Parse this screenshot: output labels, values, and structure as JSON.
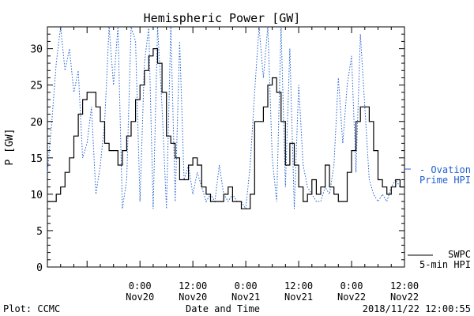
{
  "chart_data": {
    "type": "line",
    "title": "Hemispheric Power [GW]",
    "xlabel": "Date and Time",
    "ylabel": "P [GW]",
    "ylim": [
      0,
      33
    ],
    "y_ticks": [
      0,
      5,
      10,
      15,
      20,
      25,
      30
    ],
    "xlim": [
      "2018-11-19 03:00",
      "2018-11-22 12:00"
    ],
    "x_ticks": [
      {
        "t": "2018-11-20 00:00",
        "line1": "0:00",
        "line2": "Nov20"
      },
      {
        "t": "2018-11-20 12:00",
        "line1": "12:00",
        "line2": "Nov20"
      },
      {
        "t": "2018-11-21 00:00",
        "line1": "0:00",
        "line2": "Nov21"
      },
      {
        "t": "2018-11-21 12:00",
        "line1": "12:00",
        "line2": "Nov21"
      },
      {
        "t": "2018-11-22 00:00",
        "line1": "0:00",
        "line2": "Nov22"
      },
      {
        "t": "2018-11-22 12:00",
        "line1": "12:00",
        "line2": "Nov22"
      }
    ],
    "series": [
      {
        "name": "SWPC 5-min HPI",
        "legend_line1": "SWPC",
        "legend_line2": "5-min HPI",
        "color": "#000000",
        "style": "solid",
        "points": [
          [
            "2018-11-19 03:00",
            9
          ],
          [
            "2018-11-19 04:00",
            9
          ],
          [
            "2018-11-19 05:00",
            10
          ],
          [
            "2018-11-19 06:00",
            11
          ],
          [
            "2018-11-19 07:00",
            13
          ],
          [
            "2018-11-19 08:00",
            15
          ],
          [
            "2018-11-19 09:00",
            18
          ],
          [
            "2018-11-19 10:00",
            21
          ],
          [
            "2018-11-19 11:00",
            23
          ],
          [
            "2018-11-19 12:00",
            24
          ],
          [
            "2018-11-19 13:00",
            24
          ],
          [
            "2018-11-19 14:00",
            22
          ],
          [
            "2018-11-19 15:00",
            20
          ],
          [
            "2018-11-19 16:00",
            17
          ],
          [
            "2018-11-19 17:00",
            16
          ],
          [
            "2018-11-19 18:00",
            16
          ],
          [
            "2018-11-19 19:00",
            14
          ],
          [
            "2018-11-19 20:00",
            16
          ],
          [
            "2018-11-19 21:00",
            18
          ],
          [
            "2018-11-19 22:00",
            20
          ],
          [
            "2018-11-19 23:00",
            23
          ],
          [
            "2018-11-20 00:00",
            25
          ],
          [
            "2018-11-20 01:00",
            27
          ],
          [
            "2018-11-20 02:00",
            29
          ],
          [
            "2018-11-20 03:00",
            30
          ],
          [
            "2018-11-20 04:00",
            28
          ],
          [
            "2018-11-20 05:00",
            24
          ],
          [
            "2018-11-20 06:00",
            18
          ],
          [
            "2018-11-20 07:00",
            17
          ],
          [
            "2018-11-20 08:00",
            15
          ],
          [
            "2018-11-20 09:00",
            12
          ],
          [
            "2018-11-20 10:00",
            12
          ],
          [
            "2018-11-20 11:00",
            14
          ],
          [
            "2018-11-20 12:00",
            15
          ],
          [
            "2018-11-20 13:00",
            14
          ],
          [
            "2018-11-20 14:00",
            11
          ],
          [
            "2018-11-20 15:00",
            10
          ],
          [
            "2018-11-20 16:00",
            9
          ],
          [
            "2018-11-20 17:00",
            9
          ],
          [
            "2018-11-20 18:00",
            9
          ],
          [
            "2018-11-20 19:00",
            10
          ],
          [
            "2018-11-20 20:00",
            11
          ],
          [
            "2018-11-20 21:00",
            9
          ],
          [
            "2018-11-20 22:00",
            9
          ],
          [
            "2018-11-20 23:00",
            8
          ],
          [
            "2018-11-21 00:00",
            8
          ],
          [
            "2018-11-21 01:00",
            10
          ],
          [
            "2018-11-21 02:00",
            20
          ],
          [
            "2018-11-21 03:00",
            20
          ],
          [
            "2018-11-21 04:00",
            22
          ],
          [
            "2018-11-21 05:00",
            25
          ],
          [
            "2018-11-21 06:00",
            26
          ],
          [
            "2018-11-21 07:00",
            24
          ],
          [
            "2018-11-21 08:00",
            20
          ],
          [
            "2018-11-21 09:00",
            14
          ],
          [
            "2018-11-21 10:00",
            17
          ],
          [
            "2018-11-21 11:00",
            14
          ],
          [
            "2018-11-21 12:00",
            11
          ],
          [
            "2018-11-21 13:00",
            9
          ],
          [
            "2018-11-21 14:00",
            10
          ],
          [
            "2018-11-21 15:00",
            12
          ],
          [
            "2018-11-21 16:00",
            10
          ],
          [
            "2018-11-21 17:00",
            11
          ],
          [
            "2018-11-21 18:00",
            14
          ],
          [
            "2018-11-21 19:00",
            11
          ],
          [
            "2018-11-21 20:00",
            10
          ],
          [
            "2018-11-21 21:00",
            9
          ],
          [
            "2018-11-21 22:00",
            9
          ],
          [
            "2018-11-21 23:00",
            13
          ],
          [
            "2018-11-22 00:00",
            16
          ],
          [
            "2018-11-22 01:00",
            20
          ],
          [
            "2018-11-22 02:00",
            22
          ],
          [
            "2018-11-22 03:00",
            22
          ],
          [
            "2018-11-22 04:00",
            20
          ],
          [
            "2018-11-22 05:00",
            16
          ],
          [
            "2018-11-22 06:00",
            12
          ],
          [
            "2018-11-22 07:00",
            11
          ],
          [
            "2018-11-22 08:00",
            10
          ],
          [
            "2018-11-22 09:00",
            11
          ],
          [
            "2018-11-22 10:00",
            12
          ],
          [
            "2018-11-22 11:00",
            11
          ],
          [
            "2018-11-22 12:00",
            11
          ]
        ]
      },
      {
        "name": "Ovation Prime HPI",
        "legend_line1": "- Ovation",
        "legend_line2": "Prime HPI",
        "color": "#1f5fd0",
        "style": "dotted",
        "points": [
          [
            "2018-11-19 03:00",
            13
          ],
          [
            "2018-11-19 04:00",
            20
          ],
          [
            "2018-11-19 05:00",
            28
          ],
          [
            "2018-11-19 06:00",
            33
          ],
          [
            "2018-11-19 07:00",
            27
          ],
          [
            "2018-11-19 08:00",
            30
          ],
          [
            "2018-11-19 09:00",
            24
          ],
          [
            "2018-11-19 10:00",
            27
          ],
          [
            "2018-11-19 11:00",
            15
          ],
          [
            "2018-11-19 12:00",
            17
          ],
          [
            "2018-11-19 13:00",
            22
          ],
          [
            "2018-11-19 14:00",
            10
          ],
          [
            "2018-11-19 15:00",
            14
          ],
          [
            "2018-11-19 16:00",
            20
          ],
          [
            "2018-11-19 17:00",
            33
          ],
          [
            "2018-11-19 18:00",
            25
          ],
          [
            "2018-11-19 19:00",
            33
          ],
          [
            "2018-11-19 20:00",
            8
          ],
          [
            "2018-11-19 21:00",
            12
          ],
          [
            "2018-11-19 22:00",
            33
          ],
          [
            "2018-11-19 23:00",
            31
          ],
          [
            "2018-11-20 00:00",
            9
          ],
          [
            "2018-11-20 01:00",
            28
          ],
          [
            "2018-11-20 02:00",
            33
          ],
          [
            "2018-11-20 03:00",
            8
          ],
          [
            "2018-11-20 04:00",
            33
          ],
          [
            "2018-11-20 05:00",
            22
          ],
          [
            "2018-11-20 06:00",
            8
          ],
          [
            "2018-11-20 07:00",
            33
          ],
          [
            "2018-11-20 08:00",
            9
          ],
          [
            "2018-11-20 09:00",
            31
          ],
          [
            "2018-11-20 10:00",
            12
          ],
          [
            "2018-11-20 11:00",
            14
          ],
          [
            "2018-11-20 12:00",
            10
          ],
          [
            "2018-11-20 13:00",
            13
          ],
          [
            "2018-11-20 14:00",
            11
          ],
          [
            "2018-11-20 15:00",
            9
          ],
          [
            "2018-11-20 16:00",
            10
          ],
          [
            "2018-11-20 17:00",
            9
          ],
          [
            "2018-11-20 18:00",
            14
          ],
          [
            "2018-11-20 19:00",
            10
          ],
          [
            "2018-11-20 20:00",
            9
          ],
          [
            "2018-11-20 21:00",
            10
          ],
          [
            "2018-11-20 22:00",
            9
          ],
          [
            "2018-11-20 23:00",
            9
          ],
          [
            "2018-11-21 00:00",
            8
          ],
          [
            "2018-11-21 01:00",
            14
          ],
          [
            "2018-11-21 02:00",
            24
          ],
          [
            "2018-11-21 03:00",
            33
          ],
          [
            "2018-11-21 04:00",
            26
          ],
          [
            "2018-11-21 05:00",
            33
          ],
          [
            "2018-11-21 06:00",
            15
          ],
          [
            "2018-11-21 07:00",
            9
          ],
          [
            "2018-11-21 08:00",
            33
          ],
          [
            "2018-11-21 09:00",
            11
          ],
          [
            "2018-11-21 10:00",
            30
          ],
          [
            "2018-11-21 11:00",
            8
          ],
          [
            "2018-11-21 12:00",
            25
          ],
          [
            "2018-11-21 13:00",
            14
          ],
          [
            "2018-11-21 14:00",
            11
          ],
          [
            "2018-11-21 15:00",
            10
          ],
          [
            "2018-11-21 16:00",
            9
          ],
          [
            "2018-11-21 17:00",
            9
          ],
          [
            "2018-11-21 18:00",
            11
          ],
          [
            "2018-11-21 19:00",
            10
          ],
          [
            "2018-11-21 20:00",
            14
          ],
          [
            "2018-11-21 21:00",
            26
          ],
          [
            "2018-11-21 22:00",
            17
          ],
          [
            "2018-11-21 23:00",
            25
          ],
          [
            "2018-11-22 00:00",
            29
          ],
          [
            "2018-11-22 01:00",
            13
          ],
          [
            "2018-11-22 02:00",
            32
          ],
          [
            "2018-11-22 03:00",
            22
          ],
          [
            "2018-11-22 04:00",
            12
          ],
          [
            "2018-11-22 05:00",
            10
          ],
          [
            "2018-11-22 06:00",
            9
          ],
          [
            "2018-11-22 07:00",
            10
          ],
          [
            "2018-11-22 08:00",
            9
          ],
          [
            "2018-11-22 09:00",
            11
          ],
          [
            "2018-11-22 10:00",
            12
          ],
          [
            "2018-11-22 11:00",
            11
          ],
          [
            "2018-11-22 12:00",
            11
          ]
        ]
      }
    ],
    "grid": false,
    "legend_placement": "right"
  },
  "footer": {
    "left": "Plot: CCMC",
    "right": "2018/11/22 12:00:55"
  }
}
